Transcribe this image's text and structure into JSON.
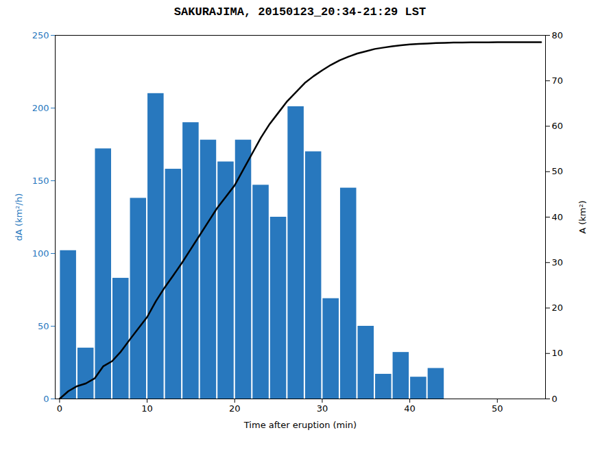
{
  "chart_data": {
    "type": "bar",
    "title": "SAKURAJIMA, 20150123_20:34-21:29 LST",
    "xlabel": "Time after eruption (min)",
    "ylabel": "dA (km²/h)",
    "y2label": "A (km²)",
    "series": [
      {
        "type": "bar",
        "color": "#2878be",
        "x": [
          1,
          3,
          5,
          7,
          9,
          11,
          13,
          15,
          17,
          19,
          21,
          23,
          25,
          27,
          29,
          31,
          33,
          35,
          37,
          39,
          41,
          43,
          45
        ],
        "values": [
          102,
          35,
          172,
          83,
          138,
          210,
          158,
          190,
          178,
          163,
          178,
          147,
          125,
          201,
          170,
          69,
          145,
          50,
          17,
          32,
          15,
          21,
          0
        ]
      },
      {
        "type": "line",
        "color": "#000000",
        "axis": "y2",
        "x": [
          0,
          1,
          2,
          3,
          4,
          5,
          6,
          7,
          8,
          9,
          10,
          11,
          12,
          13,
          14,
          15,
          16,
          17,
          18,
          19,
          20,
          21,
          22,
          23,
          24,
          25,
          26,
          27,
          28,
          29,
          30,
          31,
          32,
          33,
          34,
          35,
          36,
          37,
          38,
          39,
          40,
          41,
          42,
          43,
          44,
          45,
          46,
          47,
          48,
          49,
          50,
          51,
          52,
          53,
          54,
          55
        ],
        "values": [
          0,
          1.7,
          2.8,
          3.4,
          4.5,
          7.2,
          8.3,
          10.4,
          13.0,
          15.5,
          18.0,
          21.5,
          24.5,
          27.2,
          30.0,
          33.0,
          36.0,
          39.0,
          42.0,
          44.5,
          47.0,
          50.5,
          54.0,
          57.5,
          60.5,
          63.0,
          65.5,
          67.5,
          69.5,
          71.0,
          72.3,
          73.5,
          74.5,
          75.3,
          76.0,
          76.5,
          77.0,
          77.3,
          77.6,
          77.8,
          78.0,
          78.1,
          78.2,
          78.3,
          78.35,
          78.4,
          78.4,
          78.45,
          78.45,
          78.45,
          78.5,
          78.5,
          78.5,
          78.5,
          78.5,
          78.5
        ]
      }
    ],
    "xlim": [
      -0.5,
      55.5
    ],
    "xticks": [
      0,
      10,
      20,
      30,
      40,
      50
    ],
    "ylim": [
      0,
      250
    ],
    "yticks": [
      0,
      50,
      100,
      150,
      200,
      250
    ],
    "y2lim": [
      0,
      80
    ],
    "y2ticks": [
      0,
      10,
      20,
      30,
      40,
      50,
      60,
      70,
      80
    ],
    "grid": false
  }
}
